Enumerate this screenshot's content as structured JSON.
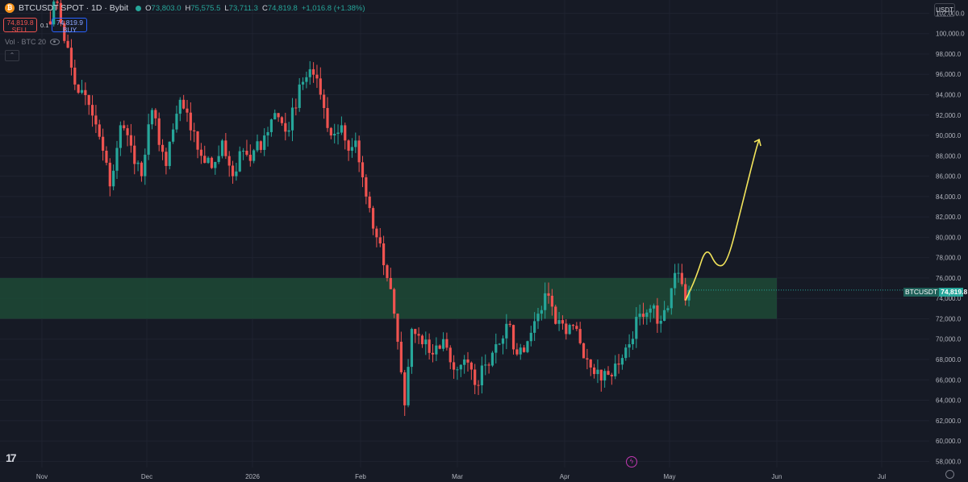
{
  "header": {
    "symbol": "BTCUSDT SPOT · 1D · Bybit",
    "ohlc": {
      "open_label": "O",
      "open": "73,803.0",
      "high_label": "H",
      "high": "75,575.5",
      "low_label": "L",
      "low": "73,711.3",
      "close_label": "C",
      "close": "74,819.8",
      "change": "+1,016.8 (+1.38%)"
    }
  },
  "trade": {
    "sell_price": "74,819.8",
    "sell_label": "SELL",
    "spread": "0.1",
    "buy_price": "74,819.9",
    "buy_label": "BUY"
  },
  "volume_label": "Vol · BTC 20",
  "currency_button": "USDT",
  "price_tag": {
    "symbol": "BTCUSDT",
    "value": "74,819.8"
  },
  "colors": {
    "up": "#26a69a",
    "down": "#ef5350",
    "zone": "#1c4a33",
    "projection": "#f2e45b",
    "background": "#161a25"
  },
  "icons": [
    "bitcoin-icon",
    "eye-icon",
    "tradingview-logo-icon",
    "lightning-icon",
    "settings-icon"
  ],
  "chart_data": {
    "type": "candlestick",
    "interval": "1D",
    "y_axis_ticks": [
      58000,
      60000,
      62000,
      64000,
      66000,
      68000,
      70000,
      72000,
      74000,
      76000,
      78000,
      80000,
      82000,
      84000,
      86000,
      88000,
      90000,
      92000,
      94000,
      96000,
      98000,
      100000,
      102000
    ],
    "y_tick_labels": [
      "58,000.0",
      "60,000.0",
      "62,000.0",
      "64,000.0",
      "66,000.0",
      "68,000.0",
      "70,000.0",
      "72,000.0",
      "74,000.0",
      "76,000.0",
      "78,000.0",
      "80,000.0",
      "82,000.0",
      "84,000.0",
      "86,000.0",
      "88,000.0",
      "90,000.0",
      "92,000.0",
      "94,000.0",
      "96,000.0",
      "98,000.0",
      "100,000.0",
      "102,000.0"
    ],
    "ylim": [
      57000,
      103300
    ],
    "x_axis_labels": [
      "Nov",
      "Dec",
      "2026",
      "Feb",
      "Mar",
      "Apr",
      "May",
      "Jun",
      "Jul"
    ],
    "last_price": 74819.8,
    "zone": {
      "low": 72000,
      "high": 76000
    },
    "anchors": [
      [
        0,
        101200
      ],
      [
        3,
        103000
      ],
      [
        8,
        95000
      ],
      [
        12,
        93000
      ],
      [
        16,
        88500
      ],
      [
        18,
        85000
      ],
      [
        21,
        91000
      ],
      [
        24,
        89000
      ],
      [
        27,
        86000
      ],
      [
        30,
        92500
      ],
      [
        34,
        87000
      ],
      [
        38,
        93500
      ],
      [
        41,
        90500
      ],
      [
        44,
        88000
      ],
      [
        47,
        86800
      ],
      [
        50,
        89500
      ],
      [
        53,
        86000
      ],
      [
        56,
        88500
      ],
      [
        58,
        87500
      ],
      [
        62,
        90000
      ],
      [
        65,
        92200
      ],
      [
        69,
        90500
      ],
      [
        72,
        95000
      ],
      [
        75,
        96500
      ],
      [
        78,
        94000
      ],
      [
        81,
        90000
      ],
      [
        84,
        91000
      ],
      [
        86,
        88500
      ],
      [
        88,
        89500
      ],
      [
        91,
        84000
      ],
      [
        94,
        80000
      ],
      [
        97,
        76000
      ],
      [
        99,
        72500
      ],
      [
        102,
        63500
      ],
      [
        104,
        71000
      ],
      [
        107,
        69500
      ],
      [
        110,
        68500
      ],
      [
        113,
        70000
      ],
      [
        116,
        67000
      ],
      [
        119,
        68000
      ],
      [
        122,
        65500
      ],
      [
        125,
        67500
      ],
      [
        128,
        69500
      ],
      [
        131,
        71500
      ],
      [
        134,
        68500
      ],
      [
        137,
        69800
      ],
      [
        140,
        72500
      ],
      [
        142,
        74500
      ],
      [
        145,
        71500
      ],
      [
        148,
        70500
      ],
      [
        151,
        71000
      ],
      [
        154,
        68000
      ],
      [
        157,
        67000
      ],
      [
        160,
        66500
      ],
      [
        163,
        67500
      ],
      [
        166,
        69500
      ],
      [
        169,
        72500
      ],
      [
        172,
        73000
      ],
      [
        175,
        71800
      ],
      [
        178,
        75000
      ],
      [
        180,
        76500
      ],
      [
        182,
        73800
      ],
      [
        183,
        74819.8
      ]
    ],
    "projection": [
      [
        182,
        73800
      ],
      [
        185,
        76000
      ],
      [
        188,
        79200
      ],
      [
        191,
        77000
      ],
      [
        194,
        77500
      ],
      [
        198,
        83000
      ],
      [
        202,
        88500
      ],
      [
        203,
        89600
      ]
    ],
    "notes_visible": {
      "volume_pane": "Vol · BTC 20",
      "grid": true,
      "legend": "top-left"
    }
  }
}
